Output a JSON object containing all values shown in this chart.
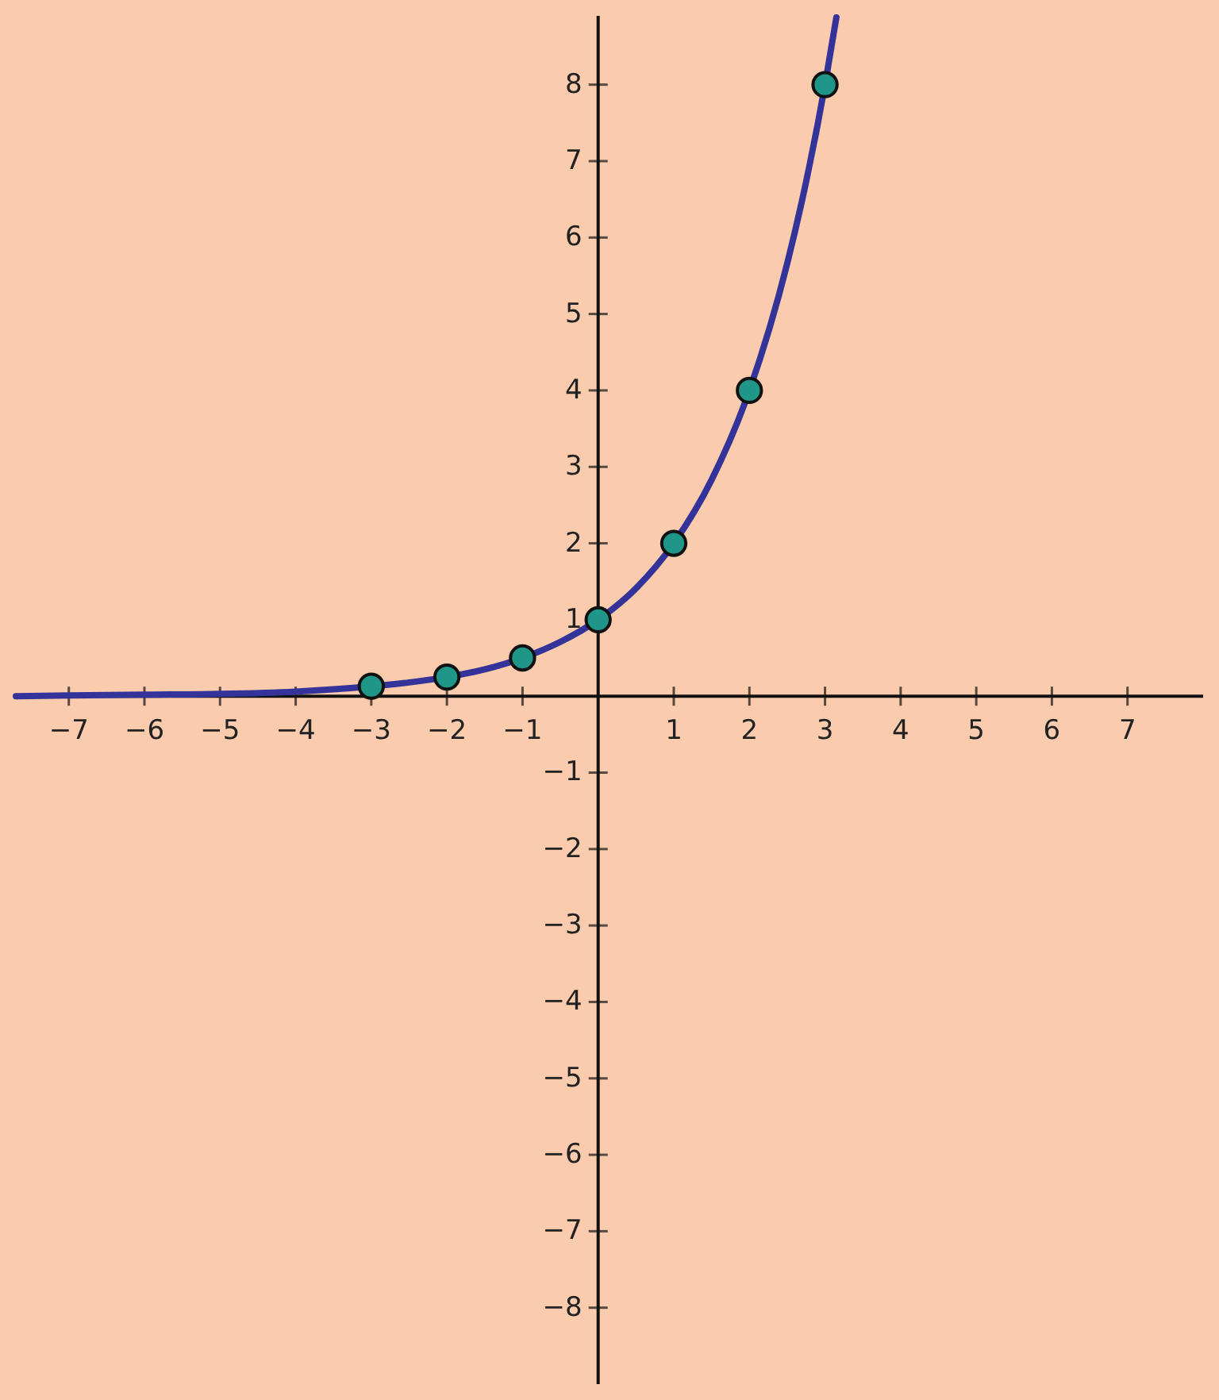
{
  "chart_data": {
    "type": "line",
    "series": [
      {
        "color": "#33339a",
        "line_style": "solid",
        "x": [
          -7.7,
          -7,
          -6,
          -5,
          -4,
          -3.5,
          -3,
          -2.5,
          -2,
          -1.5,
          -1,
          -0.5,
          0,
          0.5,
          1,
          1.5,
          2,
          2.5,
          2.75,
          3,
          3.15
        ],
        "values": [
          0.0,
          0.01,
          0.02,
          0.03,
          0.06,
          0.09,
          0.13,
          0.18,
          0.25,
          0.35,
          0.5,
          0.71,
          1,
          1.41,
          2,
          2.83,
          4,
          5.66,
          6.73,
          8,
          8.88
        ]
      },
      {
        "type": "scatter",
        "color": "#1f9688",
        "marker": "circle",
        "x": [
          -3,
          -2,
          -1,
          0,
          1,
          2,
          3
        ],
        "values": [
          0.13,
          0.25,
          0.5,
          1,
          2,
          4,
          8
        ]
      }
    ],
    "xlim": [
      -7.7,
      8
    ],
    "ylim": [
      -9,
      8.9
    ],
    "xticks": [
      -7,
      -6,
      -5,
      -4,
      -3,
      -2,
      -1,
      1,
      2,
      3,
      4,
      5,
      6,
      7
    ],
    "yticks": [
      -8,
      -7,
      -6,
      -5,
      -4,
      -3,
      -2,
      -1,
      1,
      2,
      3,
      4,
      5,
      6,
      7,
      8
    ],
    "grid": false
  }
}
